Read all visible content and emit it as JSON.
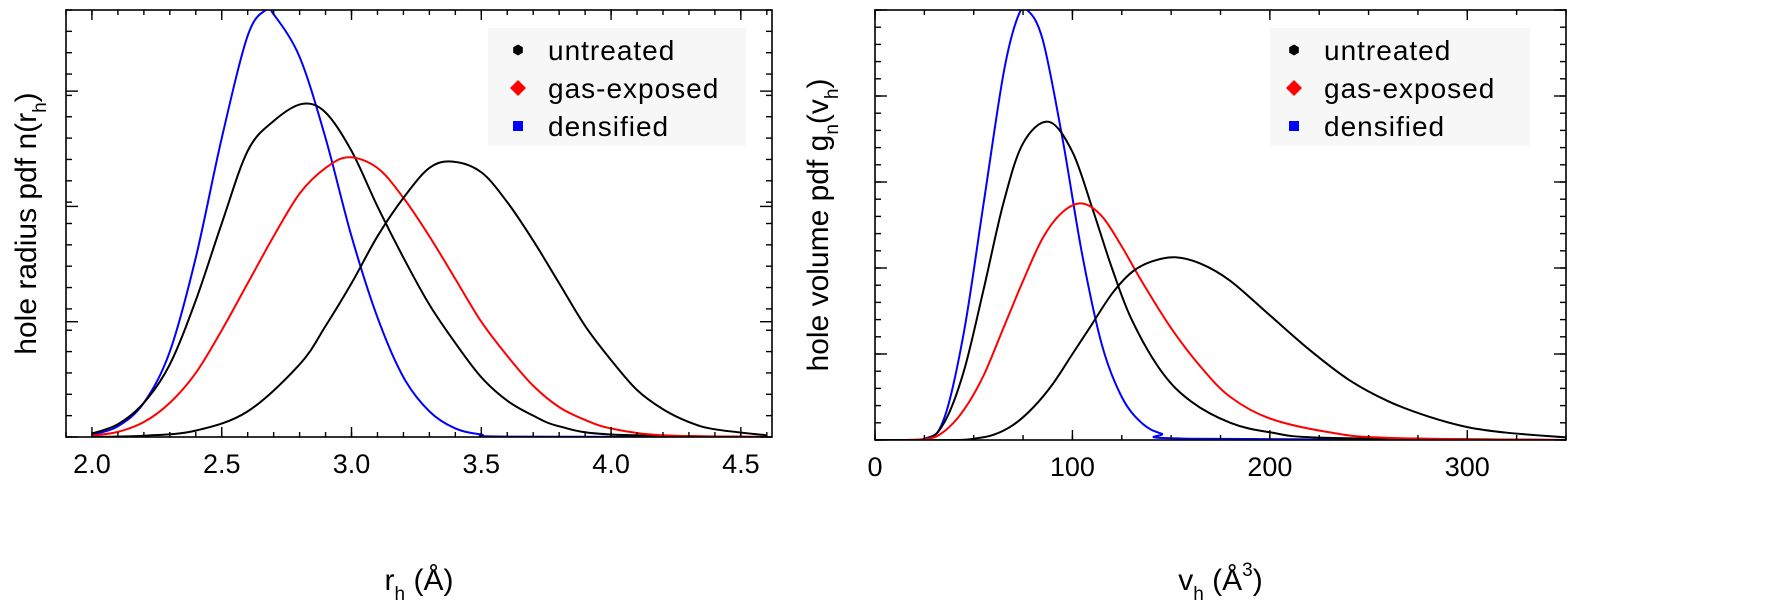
{
  "chart_data": [
    {
      "type": "line",
      "xlabel": {
        "main": "r",
        "sub": "h",
        "rest": " (Å)"
      },
      "ylabel": {
        "parts": [
          {
            "t": "hole radius pdf n(r"
          },
          {
            "t": "h",
            "sub": true
          },
          {
            "t": ")"
          }
        ]
      },
      "xlim": [
        1.9,
        4.62
      ],
      "ylim": [
        0,
        1.0
      ],
      "xticks": [
        2.0,
        2.5,
        3.0,
        3.5,
        4.0,
        4.5
      ],
      "xtick_labels": [
        "2.0",
        "2.5",
        "3.0",
        "3.5",
        "4.0",
        "4.5"
      ],
      "yticks_major": [
        0,
        0.27,
        0.54,
        0.81
      ],
      "grid": false,
      "legend_position": "top-right",
      "legend": [
        {
          "label": "untreated",
          "color": "#000000",
          "marker": "hexagon"
        },
        {
          "label": "gas-exposed",
          "color": "#ff0000",
          "marker": "diamond"
        },
        {
          "label": "densified",
          "color": "#0000ff",
          "marker": "square"
        }
      ],
      "series": [
        {
          "color": "#0000ff",
          "x": [
            2.0,
            2.1,
            2.2,
            2.3,
            2.4,
            2.5,
            2.6,
            2.67,
            2.7,
            2.8,
            2.9,
            3.0,
            3.1,
            3.2,
            3.3,
            3.4,
            3.5,
            3.6,
            4.6
          ],
          "y": [
            0.005,
            0.025,
            0.08,
            0.2,
            0.42,
            0.7,
            0.94,
            1.0,
            0.99,
            0.89,
            0.7,
            0.47,
            0.28,
            0.14,
            0.06,
            0.02,
            0.006,
            0.001,
            0.0
          ]
        },
        {
          "color": "#000000",
          "x": [
            2.0,
            2.1,
            2.2,
            2.3,
            2.4,
            2.5,
            2.6,
            2.7,
            2.81,
            2.9,
            3.0,
            3.1,
            3.2,
            3.3,
            3.4,
            3.5,
            3.6,
            3.7,
            3.8,
            4.0,
            4.6
          ],
          "y": [
            0.008,
            0.03,
            0.08,
            0.17,
            0.32,
            0.5,
            0.67,
            0.74,
            0.78,
            0.76,
            0.67,
            0.54,
            0.42,
            0.31,
            0.22,
            0.14,
            0.085,
            0.05,
            0.025,
            0.006,
            0.0
          ]
        },
        {
          "color": "#ff0000",
          "x": [
            2.0,
            2.1,
            2.2,
            2.3,
            2.4,
            2.5,
            2.6,
            2.7,
            2.8,
            2.9,
            2.99,
            3.1,
            3.2,
            3.3,
            3.4,
            3.5,
            3.6,
            3.7,
            3.8,
            3.9,
            4.0,
            4.2,
            4.6
          ],
          "y": [
            0.003,
            0.012,
            0.035,
            0.08,
            0.15,
            0.25,
            0.36,
            0.47,
            0.57,
            0.63,
            0.655,
            0.63,
            0.56,
            0.47,
            0.37,
            0.27,
            0.19,
            0.12,
            0.07,
            0.04,
            0.02,
            0.004,
            0.0
          ]
        },
        {
          "color": "#000000",
          "x": [
            2.0,
            2.2,
            2.4,
            2.6,
            2.8,
            2.9,
            3.0,
            3.1,
            3.2,
            3.3,
            3.39,
            3.5,
            3.6,
            3.7,
            3.8,
            3.9,
            4.0,
            4.1,
            4.2,
            4.3,
            4.4,
            4.6
          ],
          "y": [
            0.0,
            0.003,
            0.015,
            0.06,
            0.17,
            0.26,
            0.36,
            0.47,
            0.56,
            0.63,
            0.645,
            0.62,
            0.55,
            0.46,
            0.36,
            0.26,
            0.18,
            0.11,
            0.065,
            0.035,
            0.018,
            0.004
          ]
        }
      ]
    },
    {
      "type": "line",
      "xlabel": {
        "main": "v",
        "sub": "h",
        "rest": " (Å",
        "sup": "3",
        "close": ")"
      },
      "ylabel": {
        "parts": [
          {
            "t": "hole volume pdf g"
          },
          {
            "t": "n",
            "sub": true
          },
          {
            "t": "(v"
          },
          {
            "t": "h",
            "sub": true
          },
          {
            "t": ")"
          }
        ]
      },
      "xlim": [
        0,
        350
      ],
      "ylim": [
        0,
        1.0
      ],
      "xticks": [
        0,
        100,
        200,
        300
      ],
      "xtick_labels": [
        "0",
        "100",
        "200",
        "300"
      ],
      "yticks_major": [
        0,
        0.2,
        0.4,
        0.6,
        0.8,
        1.0
      ],
      "grid": false,
      "legend_position": "top-right",
      "legend": [
        {
          "label": "untreated",
          "color": "#000000",
          "marker": "hexagon"
        },
        {
          "label": "gas-exposed",
          "color": "#ff0000",
          "marker": "diamond"
        },
        {
          "label": "densified",
          "color": "#0000ff",
          "marker": "square"
        }
      ],
      "series": [
        {
          "color": "#0000ff",
          "x": [
            0,
            25,
            35,
            45,
            55,
            65,
            72,
            77,
            85,
            95,
            105,
            115,
            125,
            135,
            145,
            160,
            350
          ],
          "y": [
            0.0,
            0.003,
            0.05,
            0.25,
            0.55,
            0.85,
            0.98,
            1.0,
            0.93,
            0.7,
            0.43,
            0.22,
            0.1,
            0.04,
            0.015,
            0.003,
            0.0
          ]
        },
        {
          "color": "#000000",
          "x": [
            0,
            25,
            35,
            45,
            55,
            65,
            75,
            88,
            100,
            110,
            120,
            130,
            145,
            160,
            180,
            200,
            230,
            350
          ],
          "y": [
            0.0,
            0.002,
            0.04,
            0.16,
            0.35,
            0.55,
            0.69,
            0.74,
            0.67,
            0.54,
            0.4,
            0.28,
            0.16,
            0.09,
            0.04,
            0.018,
            0.005,
            0.0
          ]
        },
        {
          "color": "#ff0000",
          "x": [
            0,
            25,
            35,
            45,
            55,
            65,
            75,
            85,
            95,
            105,
            115,
            125,
            135,
            150,
            165,
            180,
            200,
            230,
            260,
            350
          ],
          "y": [
            0.0,
            0.002,
            0.02,
            0.07,
            0.15,
            0.26,
            0.37,
            0.47,
            0.53,
            0.55,
            0.52,
            0.45,
            0.37,
            0.26,
            0.17,
            0.1,
            0.05,
            0.018,
            0.005,
            0.0
          ]
        },
        {
          "color": "#000000",
          "x": [
            0,
            40,
            50,
            60,
            70,
            80,
            90,
            100,
            110,
            120,
            130,
            140,
            152,
            165,
            180,
            200,
            220,
            240,
            260,
            280,
            300,
            320,
            350
          ],
          "y": [
            0.0,
            0.0,
            0.003,
            0.012,
            0.035,
            0.075,
            0.13,
            0.2,
            0.27,
            0.34,
            0.39,
            0.415,
            0.425,
            0.41,
            0.37,
            0.29,
            0.21,
            0.14,
            0.09,
            0.055,
            0.03,
            0.017,
            0.006
          ]
        }
      ]
    }
  ]
}
